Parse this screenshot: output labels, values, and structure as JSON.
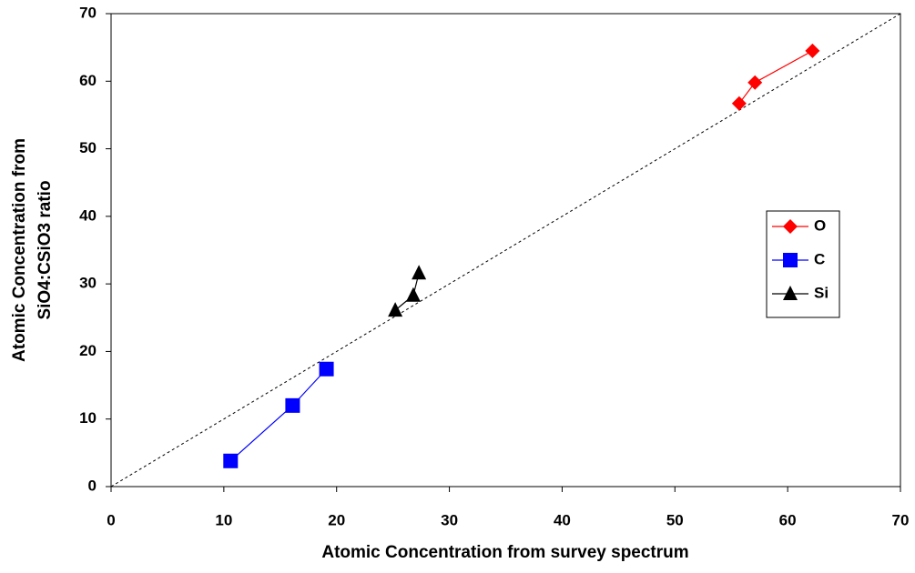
{
  "chart_data": {
    "type": "scatter",
    "x_label": "Atomic Concentration from survey spectrum",
    "y_label": [
      "Atomic Concentration from",
      "SiO4:CSiO3 ratio"
    ],
    "xlim": [
      0,
      70
    ],
    "ylim": [
      0,
      70
    ],
    "xticks": [
      0,
      10,
      20,
      30,
      40,
      50,
      60,
      70
    ],
    "yticks": [
      0,
      10,
      20,
      30,
      40,
      50,
      60,
      70
    ],
    "grid": false,
    "diagonal": true,
    "legend": "right",
    "series": [
      {
        "name": "O",
        "color": "#ff0000",
        "marker": "diamond",
        "x": [
          55.7,
          57.1,
          62.2
        ],
        "values": [
          56.7,
          59.8,
          64.5
        ]
      },
      {
        "name": "C",
        "color": "#0000ff",
        "marker": "square",
        "x": [
          10.6,
          16.1,
          19.1
        ],
        "values": [
          3.8,
          12.0,
          17.4
        ]
      },
      {
        "name": "Si",
        "color": "#000000",
        "marker": "triangle",
        "x": [
          25.2,
          26.8,
          27.3
        ],
        "values": [
          26.1,
          28.3,
          31.6
        ]
      }
    ]
  }
}
